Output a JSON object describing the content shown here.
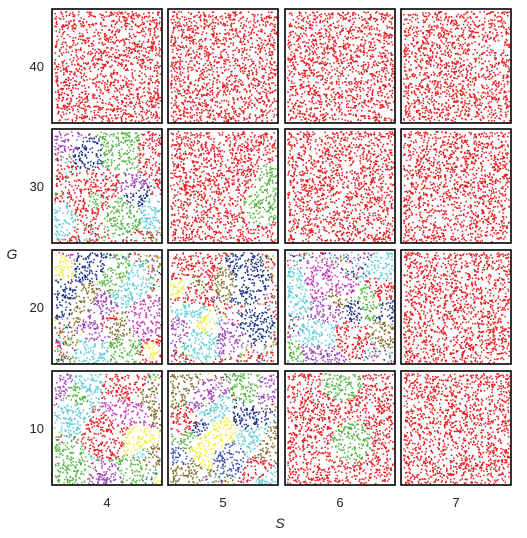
{
  "chart_data": {
    "type": "scatter",
    "layout": "small-multiples grid",
    "xlabel": "S",
    "ylabel": "G",
    "columns": [
      "4",
      "5",
      "6",
      "7"
    ],
    "rows": [
      "40",
      "30",
      "20",
      "10"
    ],
    "grid": false,
    "legend": "none",
    "color_palette": {
      "red": "#e8171b",
      "green": "#4fb33a",
      "cyan": "#5ccbd6",
      "navy": "#172d82",
      "purple": "#9a3fb8",
      "magenta": "#c431b3",
      "yellow": "#f1ee22",
      "olive": "#7f6b28",
      "teal": "#1f7b7a",
      "blue": "#3a4fb0"
    },
    "panels": [
      {
        "S": "4",
        "G": "40",
        "clusters": [
          {
            "color": "red",
            "share": 1.0
          }
        ]
      },
      {
        "S": "5",
        "G": "40",
        "clusters": [
          {
            "color": "red",
            "share": 1.0
          }
        ]
      },
      {
        "S": "6",
        "G": "40",
        "clusters": [
          {
            "color": "red",
            "share": 1.0
          }
        ]
      },
      {
        "S": "7",
        "G": "40",
        "clusters": [
          {
            "color": "red",
            "share": 1.0
          }
        ]
      },
      {
        "S": "4",
        "G": "30",
        "clusters": [
          {
            "color": "red",
            "share": 0.62
          },
          {
            "color": "green",
            "share": 0.24
          },
          {
            "color": "cyan",
            "share": 0.07
          },
          {
            "color": "navy",
            "share": 0.05
          },
          {
            "color": "purple",
            "share": 0.02
          }
        ]
      },
      {
        "S": "5",
        "G": "30",
        "clusters": [
          {
            "color": "red",
            "share": 0.97
          },
          {
            "color": "green",
            "share": 0.03
          }
        ]
      },
      {
        "S": "6",
        "G": "30",
        "clusters": [
          {
            "color": "red",
            "share": 1.0
          }
        ]
      },
      {
        "S": "7",
        "G": "30",
        "clusters": [
          {
            "color": "red",
            "share": 1.0
          }
        ]
      },
      {
        "S": "4",
        "G": "20",
        "clusters": [
          {
            "color": "green",
            "share": 0.18
          },
          {
            "color": "yellow",
            "share": 0.14
          },
          {
            "color": "cyan",
            "share": 0.14
          },
          {
            "color": "navy",
            "share": 0.12
          },
          {
            "color": "purple",
            "share": 0.12
          },
          {
            "color": "red",
            "share": 0.12
          },
          {
            "color": "olive",
            "share": 0.09
          },
          {
            "color": "magenta",
            "share": 0.09
          }
        ]
      },
      {
        "S": "5",
        "G": "20",
        "clusters": [
          {
            "color": "red",
            "share": 0.46
          },
          {
            "color": "navy",
            "share": 0.14
          },
          {
            "color": "yellow",
            "share": 0.1
          },
          {
            "color": "purple",
            "share": 0.1
          },
          {
            "color": "olive",
            "share": 0.1
          },
          {
            "color": "cyan",
            "share": 0.1
          }
        ]
      },
      {
        "S": "6",
        "G": "20",
        "clusters": [
          {
            "color": "cyan",
            "share": 0.3
          },
          {
            "color": "navy",
            "share": 0.15
          },
          {
            "color": "purple",
            "share": 0.15
          },
          {
            "color": "red",
            "share": 0.14
          },
          {
            "color": "magenta",
            "share": 0.1
          },
          {
            "color": "green",
            "share": 0.1
          },
          {
            "color": "olive",
            "share": 0.06
          }
        ]
      },
      {
        "S": "7",
        "G": "20",
        "clusters": [
          {
            "color": "red",
            "share": 1.0
          }
        ]
      },
      {
        "S": "4",
        "G": "10",
        "clusters": [
          {
            "color": "red",
            "share": 0.2
          },
          {
            "color": "green",
            "share": 0.16
          },
          {
            "color": "cyan",
            "share": 0.16
          },
          {
            "color": "purple",
            "share": 0.14
          },
          {
            "color": "olive",
            "share": 0.1
          },
          {
            "color": "yellow",
            "share": 0.08
          },
          {
            "color": "teal",
            "share": 0.08
          },
          {
            "color": "magenta",
            "share": 0.08
          }
        ]
      },
      {
        "S": "5",
        "G": "10",
        "clusters": [
          {
            "color": "olive",
            "share": 0.2
          },
          {
            "color": "cyan",
            "share": 0.18
          },
          {
            "color": "navy",
            "share": 0.14
          },
          {
            "color": "yellow",
            "share": 0.12
          },
          {
            "color": "red",
            "share": 0.12
          },
          {
            "color": "green",
            "share": 0.1
          },
          {
            "color": "purple",
            "share": 0.07
          },
          {
            "color": "blue",
            "share": 0.07
          }
        ]
      },
      {
        "S": "6",
        "G": "10",
        "clusters": [
          {
            "color": "red",
            "share": 0.99
          },
          {
            "color": "green",
            "share": 0.01
          }
        ]
      },
      {
        "S": "7",
        "G": "10",
        "clusters": [
          {
            "color": "red",
            "share": 1.0
          }
        ]
      }
    ]
  }
}
